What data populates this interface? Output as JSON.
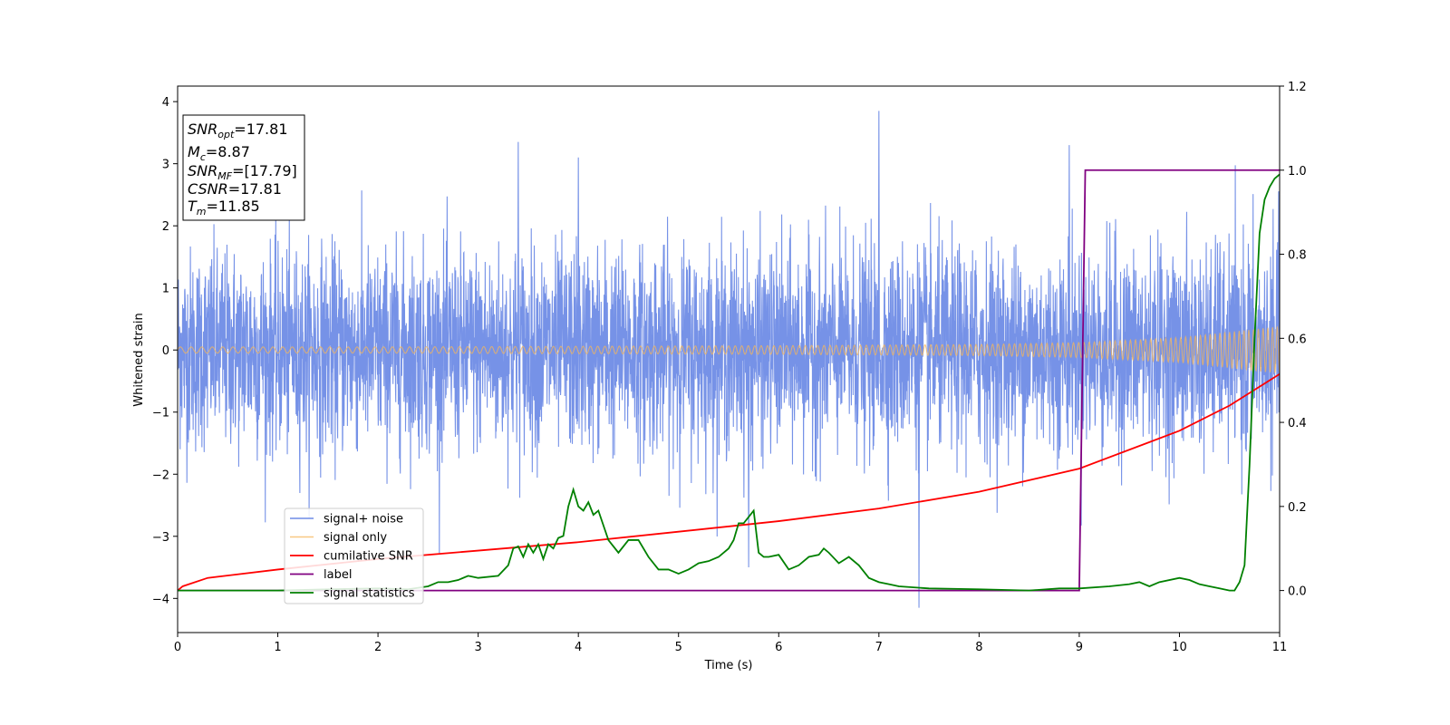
{
  "chart_data": {
    "type": "line",
    "xlabel": "Time (s)",
    "ylabel": "Whitened strain",
    "xlim": [
      0,
      11
    ],
    "ylim": [
      -4.55,
      4.25
    ],
    "y2lim": [
      -0.1,
      1.2
    ],
    "x_ticks": [
      "0",
      "1",
      "2",
      "3",
      "4",
      "5",
      "6",
      "7",
      "8",
      "9",
      "10",
      "11"
    ],
    "y_ticks": [
      "−4",
      "−3",
      "−2",
      "−1",
      "0",
      "1",
      "2",
      "3",
      "4"
    ],
    "y2_ticks": [
      "0.0",
      "0.2",
      "0.4",
      "0.6",
      "0.8",
      "1.0",
      "1.2"
    ],
    "grid": false,
    "legend_position": "lower-left",
    "info_box": [
      {
        "base": "SNR",
        "sub": "opt",
        "rest": "=17.81"
      },
      {
        "base": "M",
        "sub": "c",
        "rest": "=8.87"
      },
      {
        "base": "SNR",
        "sub": "MF",
        "rest": "=[17.79]"
      },
      {
        "base": "CSNR",
        "sub": "",
        "rest": "=17.81"
      },
      {
        "base": "T",
        "sub": "m",
        "rest": "=11.85"
      }
    ],
    "series": [
      {
        "name": "signal+ noise",
        "axis": "left",
        "color": "#6f8ce6",
        "style": "noise",
        "noise_std": 0.8,
        "notable_spikes": [
          [
            3.4,
            3.35
          ],
          [
            4.0,
            3.1
          ],
          [
            5.7,
            -3.5
          ],
          [
            7.0,
            3.85
          ],
          [
            7.4,
            -4.15
          ],
          [
            8.9,
            3.3
          ]
        ]
      },
      {
        "name": "signal only",
        "axis": "left",
        "color": "#f6b55a",
        "style": "chirp",
        "amplitude_x": [
          0,
          2,
          4,
          6,
          8,
          9,
          10,
          11
        ],
        "amplitude_y": [
          0.05,
          0.05,
          0.06,
          0.07,
          0.09,
          0.12,
          0.2,
          0.38
        ]
      },
      {
        "name": "cumilative SNR",
        "axis": "right",
        "color": "#ff0000",
        "x": [
          0,
          0.05,
          0.3,
          1,
          2,
          3,
          4,
          5,
          6,
          7,
          8,
          9,
          10,
          10.5,
          11
        ],
        "y": [
          0.0,
          0.01,
          0.03,
          0.05,
          0.075,
          0.095,
          0.115,
          0.14,
          0.165,
          0.195,
          0.235,
          0.29,
          0.38,
          0.44,
          0.515
        ]
      },
      {
        "name": "label",
        "axis": "right",
        "color": "#800080",
        "x": [
          0,
          9.0,
          9.06,
          11
        ],
        "y": [
          0,
          0,
          1,
          1
        ]
      },
      {
        "name": "signal statistics",
        "axis": "right",
        "color": "#008000",
        "x": [
          0,
          0.3,
          1,
          1.5,
          2,
          2.3,
          2.5,
          2.6,
          2.7,
          2.8,
          2.9,
          3.0,
          3.2,
          3.3,
          3.35,
          3.4,
          3.45,
          3.5,
          3.55,
          3.6,
          3.65,
          3.7,
          3.75,
          3.8,
          3.85,
          3.9,
          3.95,
          4.0,
          4.05,
          4.1,
          4.15,
          4.2,
          4.3,
          4.4,
          4.5,
          4.6,
          4.7,
          4.8,
          4.9,
          5.0,
          5.1,
          5.2,
          5.3,
          5.4,
          5.5,
          5.55,
          5.6,
          5.65,
          5.7,
          5.75,
          5.8,
          5.85,
          5.9,
          6.0,
          6.1,
          6.2,
          6.3,
          6.4,
          6.45,
          6.5,
          6.6,
          6.7,
          6.8,
          6.9,
          7.0,
          7.1,
          7.2,
          7.5,
          8.0,
          8.5,
          8.8,
          9.0,
          9.3,
          9.5,
          9.6,
          9.7,
          9.8,
          10.0,
          10.1,
          10.2,
          10.3,
          10.4,
          10.5,
          10.55,
          10.6,
          10.65,
          10.7,
          10.75,
          10.8,
          10.85,
          10.9,
          10.95,
          11.0
        ],
        "y": [
          0,
          0,
          0,
          0.003,
          0.005,
          0.003,
          0.01,
          0.02,
          0.02,
          0.025,
          0.035,
          0.03,
          0.035,
          0.06,
          0.1,
          0.105,
          0.08,
          0.11,
          0.09,
          0.11,
          0.075,
          0.11,
          0.1,
          0.125,
          0.13,
          0.2,
          0.24,
          0.2,
          0.19,
          0.21,
          0.18,
          0.19,
          0.12,
          0.09,
          0.12,
          0.12,
          0.08,
          0.05,
          0.05,
          0.04,
          0.05,
          0.065,
          0.07,
          0.08,
          0.1,
          0.12,
          0.16,
          0.16,
          0.175,
          0.19,
          0.09,
          0.08,
          0.08,
          0.085,
          0.05,
          0.06,
          0.08,
          0.085,
          0.1,
          0.09,
          0.065,
          0.08,
          0.06,
          0.03,
          0.02,
          0.015,
          0.01,
          0.005,
          0.003,
          0.0,
          0.005,
          0.005,
          0.01,
          0.015,
          0.02,
          0.01,
          0.02,
          0.03,
          0.025,
          0.015,
          0.01,
          0.005,
          0.0,
          0.0,
          0.02,
          0.06,
          0.3,
          0.6,
          0.85,
          0.93,
          0.96,
          0.98,
          0.99
        ]
      }
    ]
  }
}
